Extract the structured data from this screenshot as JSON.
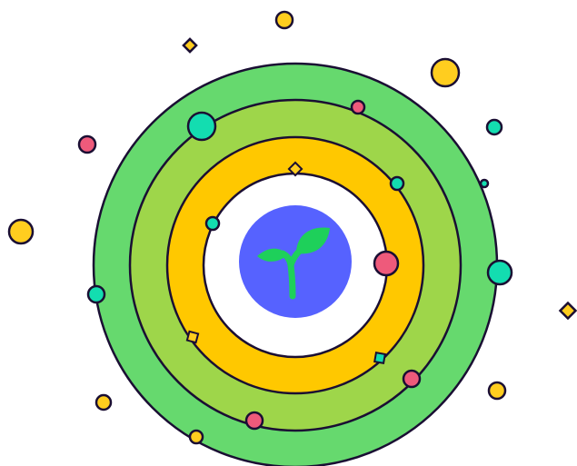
{
  "colors": {
    "outline": "#1a0e33",
    "ring_outer": "#66d96e",
    "ring_second": "#9ed64a",
    "ring_third": "#ffc800",
    "ring_inner": "#ffffff",
    "core": "#5662ff",
    "sprout": "#1ed05a",
    "dot_yellow": "#ffcd1f",
    "dot_pink": "#ee5a7b",
    "dot_teal": "#13ddb0"
  },
  "core_icon": "sprout-icon"
}
